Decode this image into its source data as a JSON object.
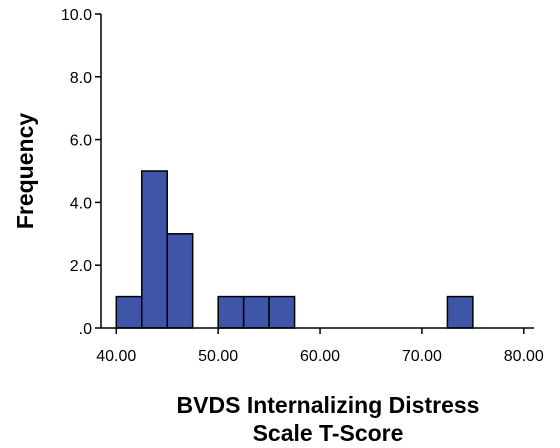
{
  "chart_data": {
    "type": "bar",
    "subtype": "histogram",
    "bins": [
      {
        "x0": 40.0,
        "x1": 42.5,
        "frequency": 1
      },
      {
        "x0": 42.5,
        "x1": 45.0,
        "frequency": 5
      },
      {
        "x0": 45.0,
        "x1": 47.5,
        "frequency": 3
      },
      {
        "x0": 50.0,
        "x1": 52.5,
        "frequency": 1
      },
      {
        "x0": 52.5,
        "x1": 55.0,
        "frequency": 1
      },
      {
        "x0": 55.0,
        "x1": 57.5,
        "frequency": 1
      },
      {
        "x0": 72.5,
        "x1": 75.0,
        "frequency": 1
      }
    ],
    "xlabel_lines": [
      "BVDS Internalizing Distress",
      "Scale T-Score"
    ],
    "ylabel": "Frequency",
    "xlim": [
      38.5,
      81.0
    ],
    "ylim": [
      0,
      10.0
    ],
    "x_ticks": [
      {
        "value": 40,
        "label": "40.00"
      },
      {
        "value": 50,
        "label": "50.00"
      },
      {
        "value": 60,
        "label": "60.00"
      },
      {
        "value": 70,
        "label": "70.00"
      },
      {
        "value": 80,
        "label": "80.00"
      }
    ],
    "y_ticks": [
      {
        "value": 0,
        "label": ".0"
      },
      {
        "value": 2,
        "label": "2.0"
      },
      {
        "value": 4,
        "label": "4.0"
      },
      {
        "value": 6,
        "label": "6.0"
      },
      {
        "value": 8,
        "label": "8.0"
      },
      {
        "value": 10,
        "label": "10.0"
      }
    ],
    "grid": false,
    "colors": {
      "bar_fill": "#3f56a8",
      "bar_stroke": "#000000",
      "axis": "#000000"
    }
  }
}
